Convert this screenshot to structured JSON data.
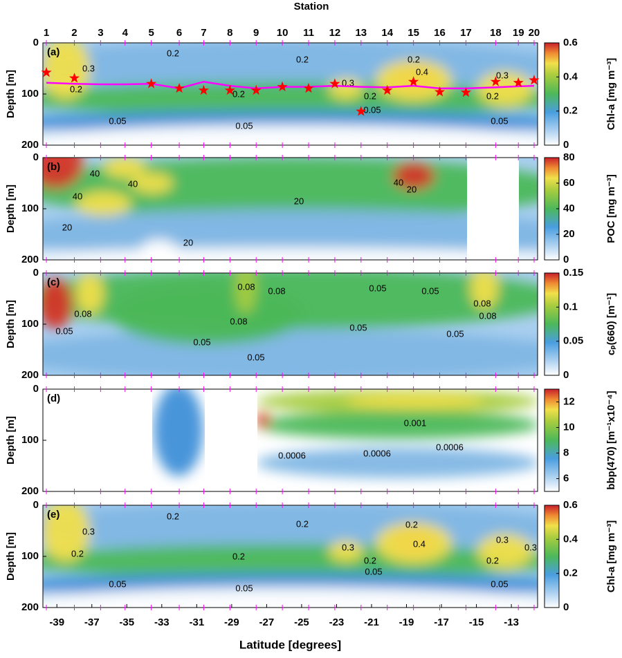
{
  "chart_data": [
    {
      "type": "contour",
      "title": "Station",
      "panel_label": "(a)",
      "ylabel": "Depth [m]",
      "ylim": [
        0,
        200
      ],
      "yticks": [
        0,
        100,
        200
      ],
      "xlim": [
        -39.8,
        -11.5
      ],
      "categories": [
        "1",
        "2",
        "3",
        "4",
        "5",
        "6",
        "7",
        "8",
        "9",
        "10",
        "11",
        "12",
        "13",
        "14",
        "15",
        "16",
        "17",
        "18",
        "19",
        "20"
      ],
      "x": [
        -39.6,
        -38.0,
        -36.5,
        -35.1,
        -33.6,
        -32.0,
        -30.6,
        -29.1,
        -27.6,
        -26.1,
        -24.6,
        -23.1,
        -21.6,
        -20.1,
        -18.6,
        -17.1,
        -15.6,
        -13.9,
        -12.6,
        -11.7
      ],
      "series": [
        {
          "marker": "line",
          "color": "#ff00ff",
          "values": [
            78,
            80,
            81,
            81,
            80,
            89,
            76,
            84,
            89,
            86,
            86,
            84,
            86,
            87,
            84,
            89,
            89,
            87,
            85,
            84
          ]
        },
        {
          "marker": "star",
          "color": "#ff0000",
          "values": [
            58,
            69,
            null,
            null,
            80,
            89,
            93,
            93,
            93,
            86,
            89,
            80,
            134,
            93,
            76,
            96,
            97,
            76,
            78,
            73
          ]
        }
      ],
      "colorbar_label": "Chl-a [mg m⁻³]",
      "clim": [
        0,
        0.6
      ],
      "cticks": [
        0,
        0.2,
        0.4,
        0.6
      ],
      "contour_labels": [
        "0.3",
        "0.2",
        "0.2",
        "0.2",
        "0.2",
        "0.2",
        "0.3",
        "0.2",
        "0.05",
        "0.05",
        "0.05",
        "0.05",
        "0.3",
        "0.2",
        "0.4"
      ]
    },
    {
      "type": "contour",
      "panel_label": "(b)",
      "ylabel": "Depth [m]",
      "ylim": [
        0,
        200
      ],
      "yticks": [
        0,
        100,
        200
      ],
      "colorbar_label": "POC [mg m⁻³]",
      "clim": [
        0,
        80
      ],
      "cticks": [
        0,
        20,
        40,
        60,
        80
      ],
      "contour_labels": [
        "40",
        "40",
        "40",
        "20",
        "20",
        "20",
        "40",
        "20"
      ]
    },
    {
      "type": "contour",
      "panel_label": "(c)",
      "ylabel": "Depth [m]",
      "ylim": [
        0,
        200
      ],
      "yticks": [
        0,
        100,
        200
      ],
      "colorbar_label": "cₚ(660) [m⁻¹]",
      "clim": [
        0,
        0.15
      ],
      "cticks": [
        0,
        0.05,
        0.1,
        0.15
      ],
      "contour_labels": [
        "0.08",
        "0.08",
        "0.05",
        "0.05",
        "0.08",
        "0.08",
        "0.05",
        "0.08",
        "0.08",
        "0.05",
        "0.05",
        "0.05",
        "0.05"
      ]
    },
    {
      "type": "contour",
      "panel_label": "(d)",
      "ylabel": "Depth [m]",
      "ylim": [
        0,
        200
      ],
      "yticks": [
        0,
        100,
        200
      ],
      "colorbar_label": "bbp(470)  [m⁻¹x10⁻⁴]",
      "clim": [
        5,
        13
      ],
      "cticks": [
        6,
        8,
        10,
        12
      ],
      "contour_labels": [
        "0.001",
        "0.0006",
        "0.0006",
        "0.0006"
      ]
    },
    {
      "type": "contour",
      "panel_label": "(e)",
      "ylabel": "Depth [m]",
      "ylim": [
        0,
        200
      ],
      "yticks": [
        0,
        100,
        200
      ],
      "xlabel": "Latitude [degrees]",
      "xticks": [
        -39,
        -37,
        -35,
        -33,
        -31,
        -29,
        -27,
        -25,
        -23,
        -21,
        -19,
        -17,
        -15,
        -13
      ],
      "colorbar_label": "Chl-a [mg m⁻³]",
      "clim": [
        0,
        0.6
      ],
      "cticks": [
        0,
        0.2,
        0.4,
        0.6
      ],
      "contour_labels": [
        "0.3",
        "0.2",
        "0.2",
        "0.2",
        "0.2",
        "0.3",
        "0.2",
        "0.05",
        "0.05",
        "0.05",
        "0.05",
        "0.3",
        "0.3",
        "0.2",
        "0.2",
        "0.4"
      ]
    }
  ]
}
